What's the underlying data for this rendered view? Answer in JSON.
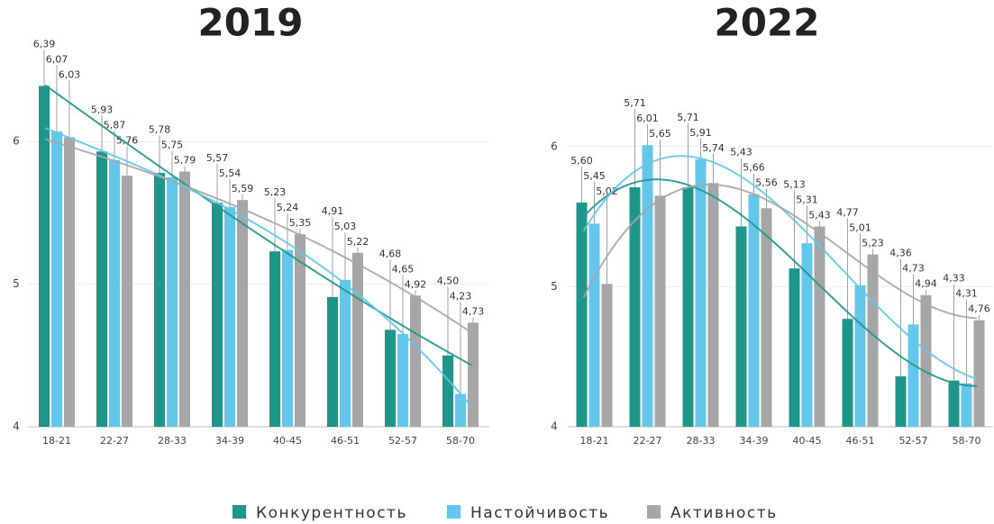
{
  "chart_data": [
    {
      "type": "bar",
      "title": "2019",
      "categories": [
        "18-21",
        "22-27",
        "28-33",
        "34-39",
        "40-45",
        "46-51",
        "52-57",
        "58-70"
      ],
      "series": [
        {
          "name": "Конкурентность",
          "color": "#1f968a",
          "values": [
            6.39,
            5.93,
            5.78,
            5.57,
            5.23,
            4.91,
            4.68,
            4.5
          ],
          "value_labels": [
            "6,39",
            "5,93",
            "5,78",
            "5,57",
            "5,23",
            "4,91",
            "4,68",
            "4,50"
          ]
        },
        {
          "name": "Настойчивость",
          "color": "#63c6ea",
          "values": [
            6.07,
            5.87,
            5.75,
            5.54,
            5.24,
            5.03,
            4.65,
            4.23
          ],
          "value_labels": [
            "6,07",
            "5,87",
            "5,75",
            "5,54",
            "5,24",
            "5,03",
            "4,65",
            "4,23"
          ]
        },
        {
          "name": "Активность",
          "color": "#a6a6a6",
          "values": [
            6.03,
            5.76,
            5.79,
            5.59,
            5.35,
            5.22,
            4.92,
            4.73
          ],
          "value_labels": [
            "6,03",
            "5,76",
            "5,79",
            "5,59",
            "5,35",
            "5,22",
            "4,92",
            "4,73"
          ]
        }
      ],
      "ylim": [
        4,
        6.5
      ],
      "yticks": [
        4,
        5,
        6
      ],
      "grid": true,
      "trendline": "polynomial",
      "trendline_order": 3
    },
    {
      "type": "bar",
      "title": "2022",
      "categories": [
        "18-21",
        "22-27",
        "28-33",
        "34-39",
        "40-45",
        "46-51",
        "52-57",
        "58-70"
      ],
      "series": [
        {
          "name": "Конкурентность",
          "color": "#1f968a",
          "values": [
            5.6,
            5.71,
            5.71,
            5.43,
            5.13,
            4.77,
            4.36,
            4.33
          ],
          "value_labels": [
            "5,60",
            "5,71",
            "5,71",
            "5,43",
            "5,13",
            "4,77",
            "4,36",
            "4,33"
          ]
        },
        {
          "name": "Настойчивость",
          "color": "#63c6ea",
          "values": [
            5.45,
            6.01,
            5.91,
            5.66,
            5.31,
            5.01,
            4.73,
            4.31
          ],
          "value_labels": [
            "5,45",
            "6,01",
            "5,91",
            "5,66",
            "5,31",
            "5,01",
            "4,73",
            "4,31"
          ]
        },
        {
          "name": "Активность",
          "color": "#a6a6a6",
          "values": [
            5.02,
            5.65,
            5.74,
            5.56,
            5.43,
            5.23,
            4.94,
            4.76
          ],
          "value_labels": [
            "5,02",
            "5,65",
            "5,74",
            "5,56",
            "5,43",
            "5,23",
            "4,94",
            "4,76"
          ]
        }
      ],
      "ylim": [
        4,
        6.5
      ],
      "yticks": [
        4,
        5,
        6
      ],
      "grid": true,
      "trendline": "polynomial",
      "trendline_order": 3
    }
  ]
}
